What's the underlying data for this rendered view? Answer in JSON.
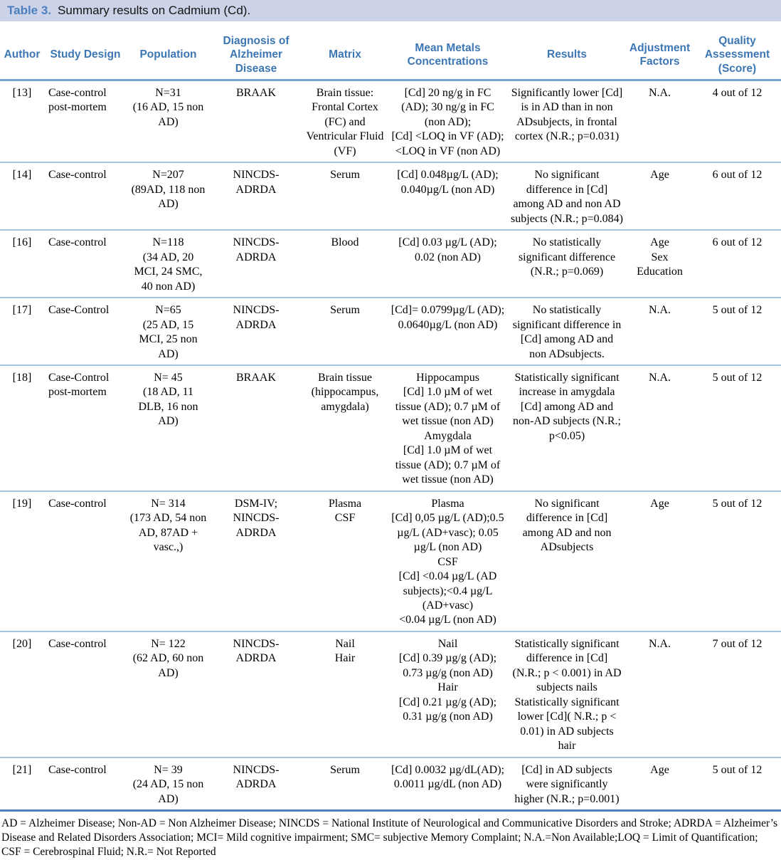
{
  "title": {
    "label": "Table 3.",
    "text": "Summary results on Cadmium (Cd)."
  },
  "columns": [
    "Author",
    "Study Design",
    "Population",
    "Diagnosis of Alzheimer Disease",
    "Matrix",
    "Mean Metals Concentrations",
    "Results",
    "Adjustment Factors",
    "Quality Assessment (Score)"
  ],
  "rows": [
    {
      "author": "[13]",
      "study_design": "Case-control\npost-mortem",
      "population": "N=31\n(16 AD, 15 non AD)",
      "diagnosis": "BRAAK",
      "matrix": "Brain tissue:\nFrontal Cortex (FC) and Ventricular Fluid (VF)",
      "concentrations": "[Cd] 20 ng/g in FC (AD); 30 ng/g in FC (non AD);\n[Cd] <LOQ in VF (AD); <LOQ in VF (non AD)",
      "results": "Significantly lower [Cd] is in AD than in non ADsubjects, in frontal cortex (N.R.; p=0.031)",
      "adjustment": "N.A.",
      "quality": "4 out of 12"
    },
    {
      "author": "[14]",
      "study_design": "Case-control",
      "population": "N=207\n(89AD, 118 non AD)",
      "diagnosis": "NINCDS-\nADRDA",
      "matrix": "Serum",
      "concentrations": "[Cd] 0.048µg/L (AD); 0.040µg/L (non AD)",
      "results": "No significant difference in [Cd] among AD and non AD subjects (N.R.; p=0.084)",
      "adjustment": "Age",
      "quality": "6 out of 12"
    },
    {
      "author": "[16]",
      "study_design": "Case-control",
      "population": "N=118\n(34 AD, 20 MCI, 24 SMC, 40 non AD)",
      "diagnosis": "NINCDS-\nADRDA",
      "matrix": "Blood",
      "concentrations": "[Cd] 0.03 µg/L (AD); 0.02 (non AD)",
      "results": "No statistically significant difference (N.R.; p=0.069)",
      "adjustment": "Age\nSex\nEducation",
      "quality": "6 out of 12"
    },
    {
      "author": "[17]",
      "study_design": "Case-Control",
      "population": "N=65\n(25 AD, 15 MCI, 25 non AD)",
      "diagnosis": "NINCDS-\nADRDA",
      "matrix": "Serum",
      "concentrations": "[Cd]= 0.0799µg/L (AD); 0.0640µg/L (non AD)",
      "results": "No statistically significant difference in [Cd] among AD and non ADsubjects.",
      "adjustment": "N.A.",
      "quality": "5 out of 12"
    },
    {
      "author": "[18]",
      "study_design": "Case-Control\npost-mortem",
      "population": "N= 45\n(18 AD, 11 DLB, 16 non AD)",
      "diagnosis": "BRAAK",
      "matrix": "Brain tissue\n(hippocampus, amygdala)",
      "concentrations": "Hippocampus\n[Cd] 1.0 µM of wet tissue (AD); 0.7 µM of wet tissue (non AD)\nAmygdala\n[Cd] 1.0 µM of wet tissue (AD); 0.7 µM of wet tissue (non AD)",
      "results": "Statistically significant increase in amygdala [Cd] among AD and non-AD subjects (N.R.; p<0.05)",
      "adjustment": "N.A.",
      "quality": "5 out of 12"
    },
    {
      "author": "[19]",
      "study_design": "Case-control",
      "population": "N= 314\n(173 AD, 54 non AD, 87AD + vasc.,)",
      "diagnosis": "DSM-IV;\nNINCDS-\nADRDA",
      "matrix": "Plasma\nCSF",
      "concentrations": "Plasma\n[Cd] 0,05 µg/L (AD);0.5 µg/L (AD+vasc); 0.05 µg/L (non AD)\nCSF\n[Cd] <0.04 µg/L (AD subjects);<0.4 µg/L (AD+vasc)\n<0.04 µg/L (non AD)",
      "results": "No significant difference in [Cd] among AD and non ADsubjects",
      "adjustment": "Age",
      "quality": "5 out of 12"
    },
    {
      "author": "[20]",
      "study_design": "Case-control",
      "population": "N= 122\n(62 AD, 60 non AD)",
      "diagnosis": "NINCDS-\nADRDA",
      "matrix": "Nail\nHair",
      "concentrations": "Nail\n[Cd] 0.39 µg/g (AD); 0.73 µg/g (non AD)\nHair\n[Cd] 0.21 µg/g (AD); 0.31 µg/g (non AD)",
      "results": "Statistically significant difference in [Cd] (N.R.; p < 0.001) in AD subjects nails\nStatistically significant lower [Cd]( N.R.; p < 0.01) in AD subjects hair",
      "adjustment": "N.A.",
      "quality": "7 out of 12"
    },
    {
      "author": "[21]",
      "study_design": "Case-control",
      "population": "N= 39\n(24 AD, 15 non AD)",
      "diagnosis": "NINCDS-\nADRDA",
      "matrix": "Serum",
      "concentrations": "[Cd] 0.0032 µg/dL(AD); 0.0011 µg/dL (non AD)",
      "results": "[Cd] in AD subjects were significantly higher (N.R.; p=0.001)",
      "adjustment": "Age",
      "quality": "5 out of 12"
    }
  ],
  "footnote": "AD = Alzheimer Disease; Non-AD = Non Alzheimer Disease; NINCDS = National Institute of Neurological and Communicative Disorders and Stroke; ADRDA = Alzheimer’s Disease and Related Disorders Association; MCI= Mild cognitive impairment; SMC= subjective Memory Complaint; N.A.=Non Available;LOQ = Limit of Quantification; CSF = Cerebrospinal Fluid; N.R.= Not Reported"
}
